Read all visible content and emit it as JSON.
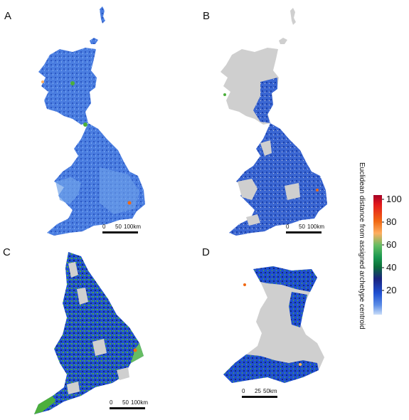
{
  "panels": [
    {
      "label": "A",
      "scale": {
        "zero": "0",
        "mid": "50",
        "end": "100km"
      }
    },
    {
      "label": "B",
      "scale": {
        "zero": "0",
        "mid": "50",
        "end": "100km"
      }
    },
    {
      "label": "C",
      "scale": {
        "zero": "0",
        "mid": "50",
        "end": "100km"
      }
    },
    {
      "label": "D",
      "scale": {
        "zero": "0",
        "mid": "25",
        "end": "50km"
      }
    }
  ],
  "colorbar": {
    "title": "Euclidean distance from assigned archetype centroid",
    "ticks": [
      "100",
      "80",
      "60",
      "40",
      "20"
    ],
    "colors": [
      "#a50026",
      "#e31a1c",
      "#f16913",
      "#fdae61",
      "#66bd63",
      "#1a9850",
      "#0b6e3a",
      "#1a237e",
      "#1f4fd1",
      "#5c8de6",
      "#a9c8f4"
    ]
  },
  "colors": {
    "land_blue": "#3d6fd8",
    "light_blue": "#6fa2ea",
    "dark_blue": "#1b3fa8",
    "grey": "#cfcfcf",
    "green": "#4caf3c",
    "navy": "#10287a"
  }
}
